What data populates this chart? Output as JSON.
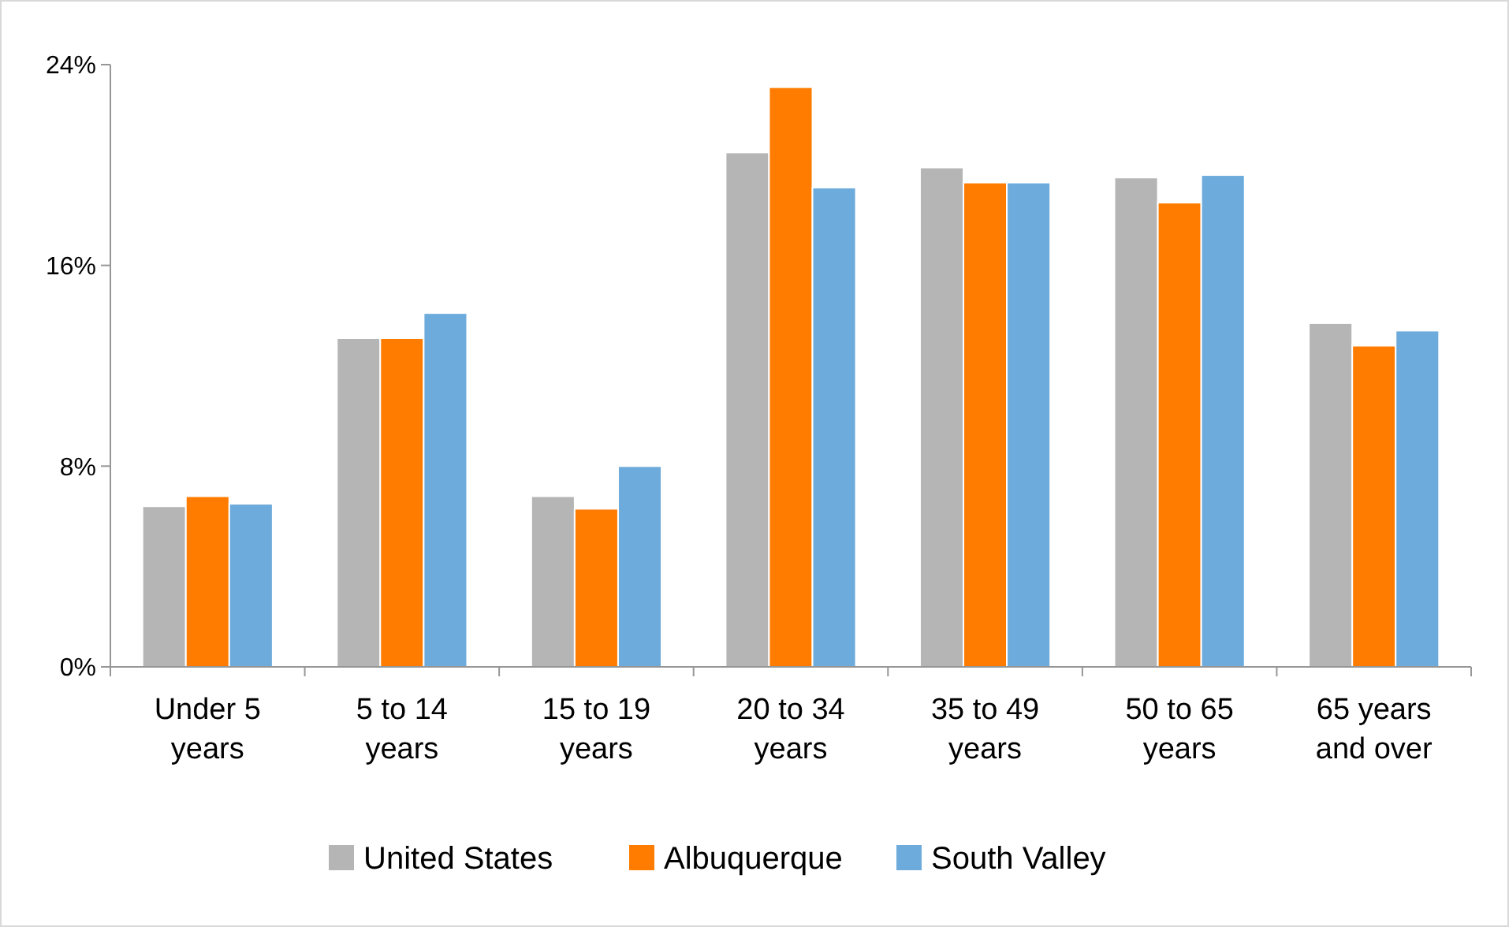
{
  "chart_data": {
    "type": "bar",
    "categories": [
      "Under 5 years",
      "5 to 14 years",
      "15 to 19 years",
      "20 to 34 years",
      "35 to 49 years",
      "50 to 65 years",
      "65 years and over"
    ],
    "series": [
      {
        "name": "United States",
        "color": "#b5b5b5",
        "values": [
          6.4,
          13.1,
          6.8,
          20.5,
          19.9,
          19.5,
          13.7
        ]
      },
      {
        "name": "Albuquerque",
        "color": "#ff7c00",
        "values": [
          6.8,
          13.1,
          6.3,
          23.1,
          19.3,
          18.5,
          12.8
        ]
      },
      {
        "name": "South Valley",
        "color": "#6cabdb",
        "values": [
          6.5,
          14.1,
          8.0,
          19.1,
          19.3,
          19.6,
          13.4
        ]
      }
    ],
    "ylim": [
      0,
      24
    ],
    "yticks": [
      {
        "value": 0,
        "label": "0%"
      },
      {
        "value": 8,
        "label": "8%"
      },
      {
        "value": 16,
        "label": "16%"
      },
      {
        "value": 24,
        "label": "24%"
      }
    ],
    "legend": "bottom",
    "grid": false
  }
}
